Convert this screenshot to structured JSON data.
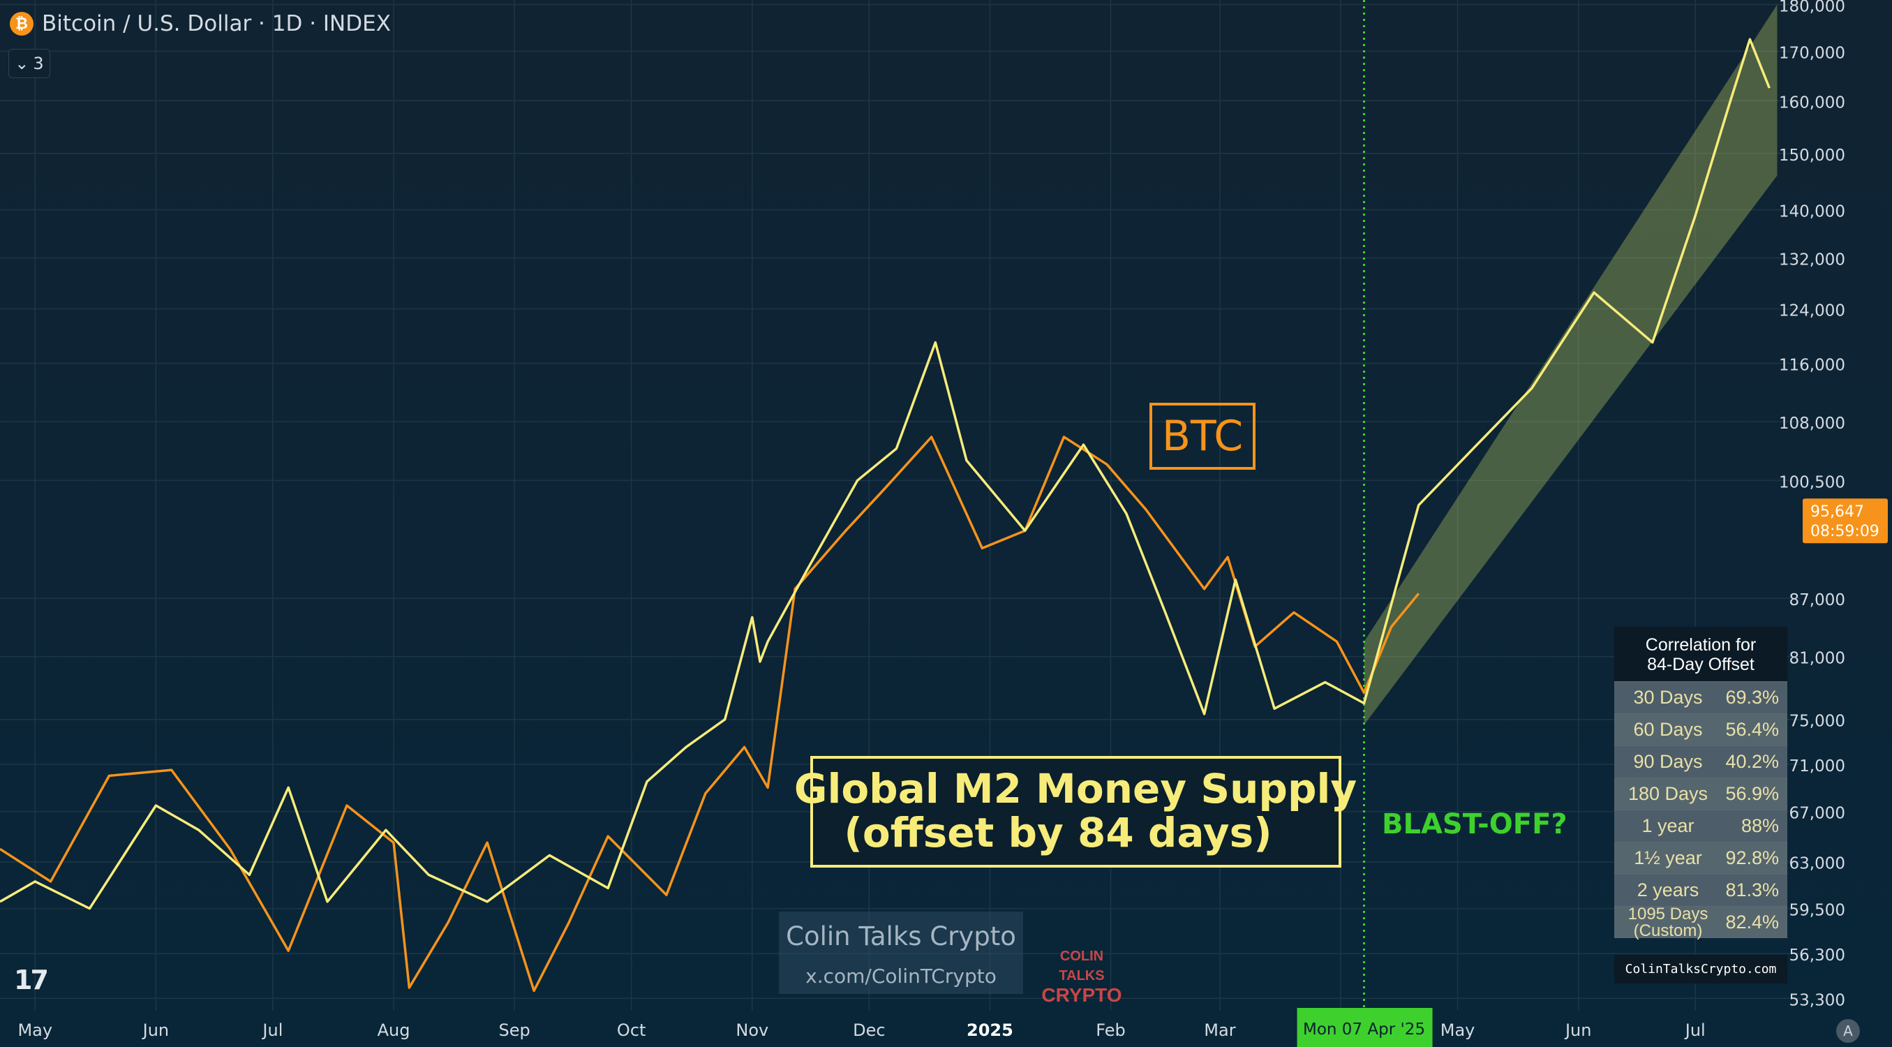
{
  "header": {
    "title": "Bitcoin / U.S. Dollar · 1D · INDEX",
    "symbol_icon": "bitcoin-icon",
    "collapse_count": "3"
  },
  "chart_data": {
    "type": "line",
    "title": "",
    "x_range": [
      "2024-04-22",
      "2025-07-28"
    ],
    "x_tick_labels": [
      "May",
      "Jun",
      "Jul",
      "Aug",
      "Sep",
      "Oct",
      "Nov",
      "Dec",
      "2025",
      "Feb",
      "Mar",
      "Apr",
      "May",
      "Jun",
      "Jul"
    ],
    "y_scale": "log",
    "ylim": [
      52500,
      181000
    ],
    "y_tick_labels": [
      "180,000",
      "170,000",
      "160,000",
      "150,000",
      "140,000",
      "132,000",
      "124,000",
      "116,000",
      "108,000",
      "100,500",
      "87,000",
      "81,000",
      "75,000",
      "71,000",
      "67,000",
      "63,000",
      "59,500",
      "56,300",
      "53,300"
    ],
    "last_price_label": "95,647",
    "countdown_label": "08:59:09",
    "crosshair_label": "Mon 07 Apr '25",
    "grid": true,
    "series": [
      {
        "name": "BTC",
        "color": "#f7931a",
        "x": [
          "2024-04-22",
          "2024-05-05",
          "2024-05-20",
          "2024-06-05",
          "2024-06-20",
          "2024-07-05",
          "2024-07-20",
          "2024-08-01",
          "2024-08-05",
          "2024-08-15",
          "2024-08-25",
          "2024-09-06",
          "2024-09-15",
          "2024-09-25",
          "2024-10-10",
          "2024-10-20",
          "2024-10-30",
          "2024-11-05",
          "2024-11-12",
          "2024-11-25",
          "2024-12-05",
          "2024-12-17",
          "2024-12-30",
          "2025-01-10",
          "2025-01-20",
          "2025-01-31",
          "2025-02-10",
          "2025-02-25",
          "2025-03-03",
          "2025-03-10",
          "2025-03-20",
          "2025-03-31",
          "2025-04-07",
          "2025-04-14",
          "2025-04-21"
        ],
        "values": [
          64000,
          61500,
          70000,
          70500,
          64000,
          56500,
          67500,
          64500,
          54000,
          58500,
          64500,
          53800,
          58500,
          65000,
          60500,
          68500,
          72500,
          69000,
          88000,
          94500,
          99500,
          106000,
          92500,
          94500,
          106000,
          102500,
          97000,
          88000,
          91500,
          82000,
          85500,
          82500,
          77500,
          84000,
          87500
        ]
      },
      {
        "name": "Global M2 Money Supply (offset by 84 days)",
        "color": "#f7ec7a",
        "x": [
          "2024-04-22",
          "2024-05-01",
          "2024-05-15",
          "2024-06-01",
          "2024-06-12",
          "2024-06-25",
          "2024-07-05",
          "2024-07-15",
          "2024-07-30",
          "2024-08-10",
          "2024-08-25",
          "2024-09-10",
          "2024-09-25",
          "2024-10-05",
          "2024-10-15",
          "2024-10-25",
          "2024-11-01",
          "2024-11-03",
          "2024-11-05",
          "2024-11-15",
          "2024-11-28",
          "2024-12-08",
          "2024-12-18",
          "2024-12-26",
          "2025-01-10",
          "2025-01-25",
          "2025-02-05",
          "2025-02-15",
          "2025-02-25",
          "2025-03-05",
          "2025-03-15",
          "2025-03-28",
          "2025-04-07",
          "2025-04-21",
          "2025-05-05",
          "2025-05-20",
          "2025-06-05",
          "2025-06-20",
          "2025-07-01",
          "2025-07-10",
          "2025-07-15",
          "2025-07-20"
        ],
        "values": [
          60000,
          61500,
          59500,
          67500,
          65500,
          62000,
          69000,
          60000,
          65500,
          62000,
          60000,
          63500,
          61000,
          69500,
          72500,
          75000,
          85000,
          80500,
          82500,
          90000,
          100500,
          104500,
          119000,
          103000,
          94500,
          105000,
          96500,
          85500,
          75500,
          89000,
          76000,
          78500,
          76500,
          97500,
          104500,
          112500,
          126500,
          119000,
          139000,
          160000,
          172500,
          162500
        ]
      }
    ],
    "annotations": [
      {
        "id": "btc-label",
        "text": "BTC"
      },
      {
        "id": "m2-label",
        "line1": "Global M2 Money Supply",
        "line2": "(offset by 84 days)"
      },
      {
        "id": "blastoff",
        "text": "BLAST-OFF?"
      }
    ],
    "projection_channel": {
      "x": [
        "2025-04-07",
        "2025-07-22"
      ],
      "upper": [
        82500,
        180000
      ],
      "lower": [
        74500,
        146000
      ],
      "color": "#c8dc64"
    }
  },
  "correlation_table": {
    "title_line1": "Correlation for",
    "title_line2": "84-Day Offset",
    "rows": [
      {
        "period": "30 Days",
        "value": "69.3%"
      },
      {
        "period": "60 Days",
        "value": "56.4%"
      },
      {
        "period": "90 Days",
        "value": "40.2%"
      },
      {
        "period": "180 Days",
        "value": "56.9%"
      },
      {
        "period": "1 year",
        "value": "88%"
      },
      {
        "period": "1½ year",
        "value": "92.8%"
      },
      {
        "period": "2 years",
        "value": "81.3%"
      },
      {
        "period": "1095 Days",
        "period2": "(Custom)",
        "value": "82.4%"
      }
    ],
    "website": "ColinTalksCrypto.com"
  },
  "watermark": {
    "name": "Colin Talks Crypto",
    "handle": "x.com/ColinTCrypto",
    "logo_line1": "COLIN TALKS",
    "logo_line2": "CRYPTO",
    "logo_icon": "bull-icon"
  },
  "tv_logo": "17",
  "auto_scale_button": "A",
  "colors": {
    "btc": "#f7931a",
    "m2": "#f7ec7a",
    "crosshair": "#3ed12e",
    "price_tag": "#f7931a"
  }
}
